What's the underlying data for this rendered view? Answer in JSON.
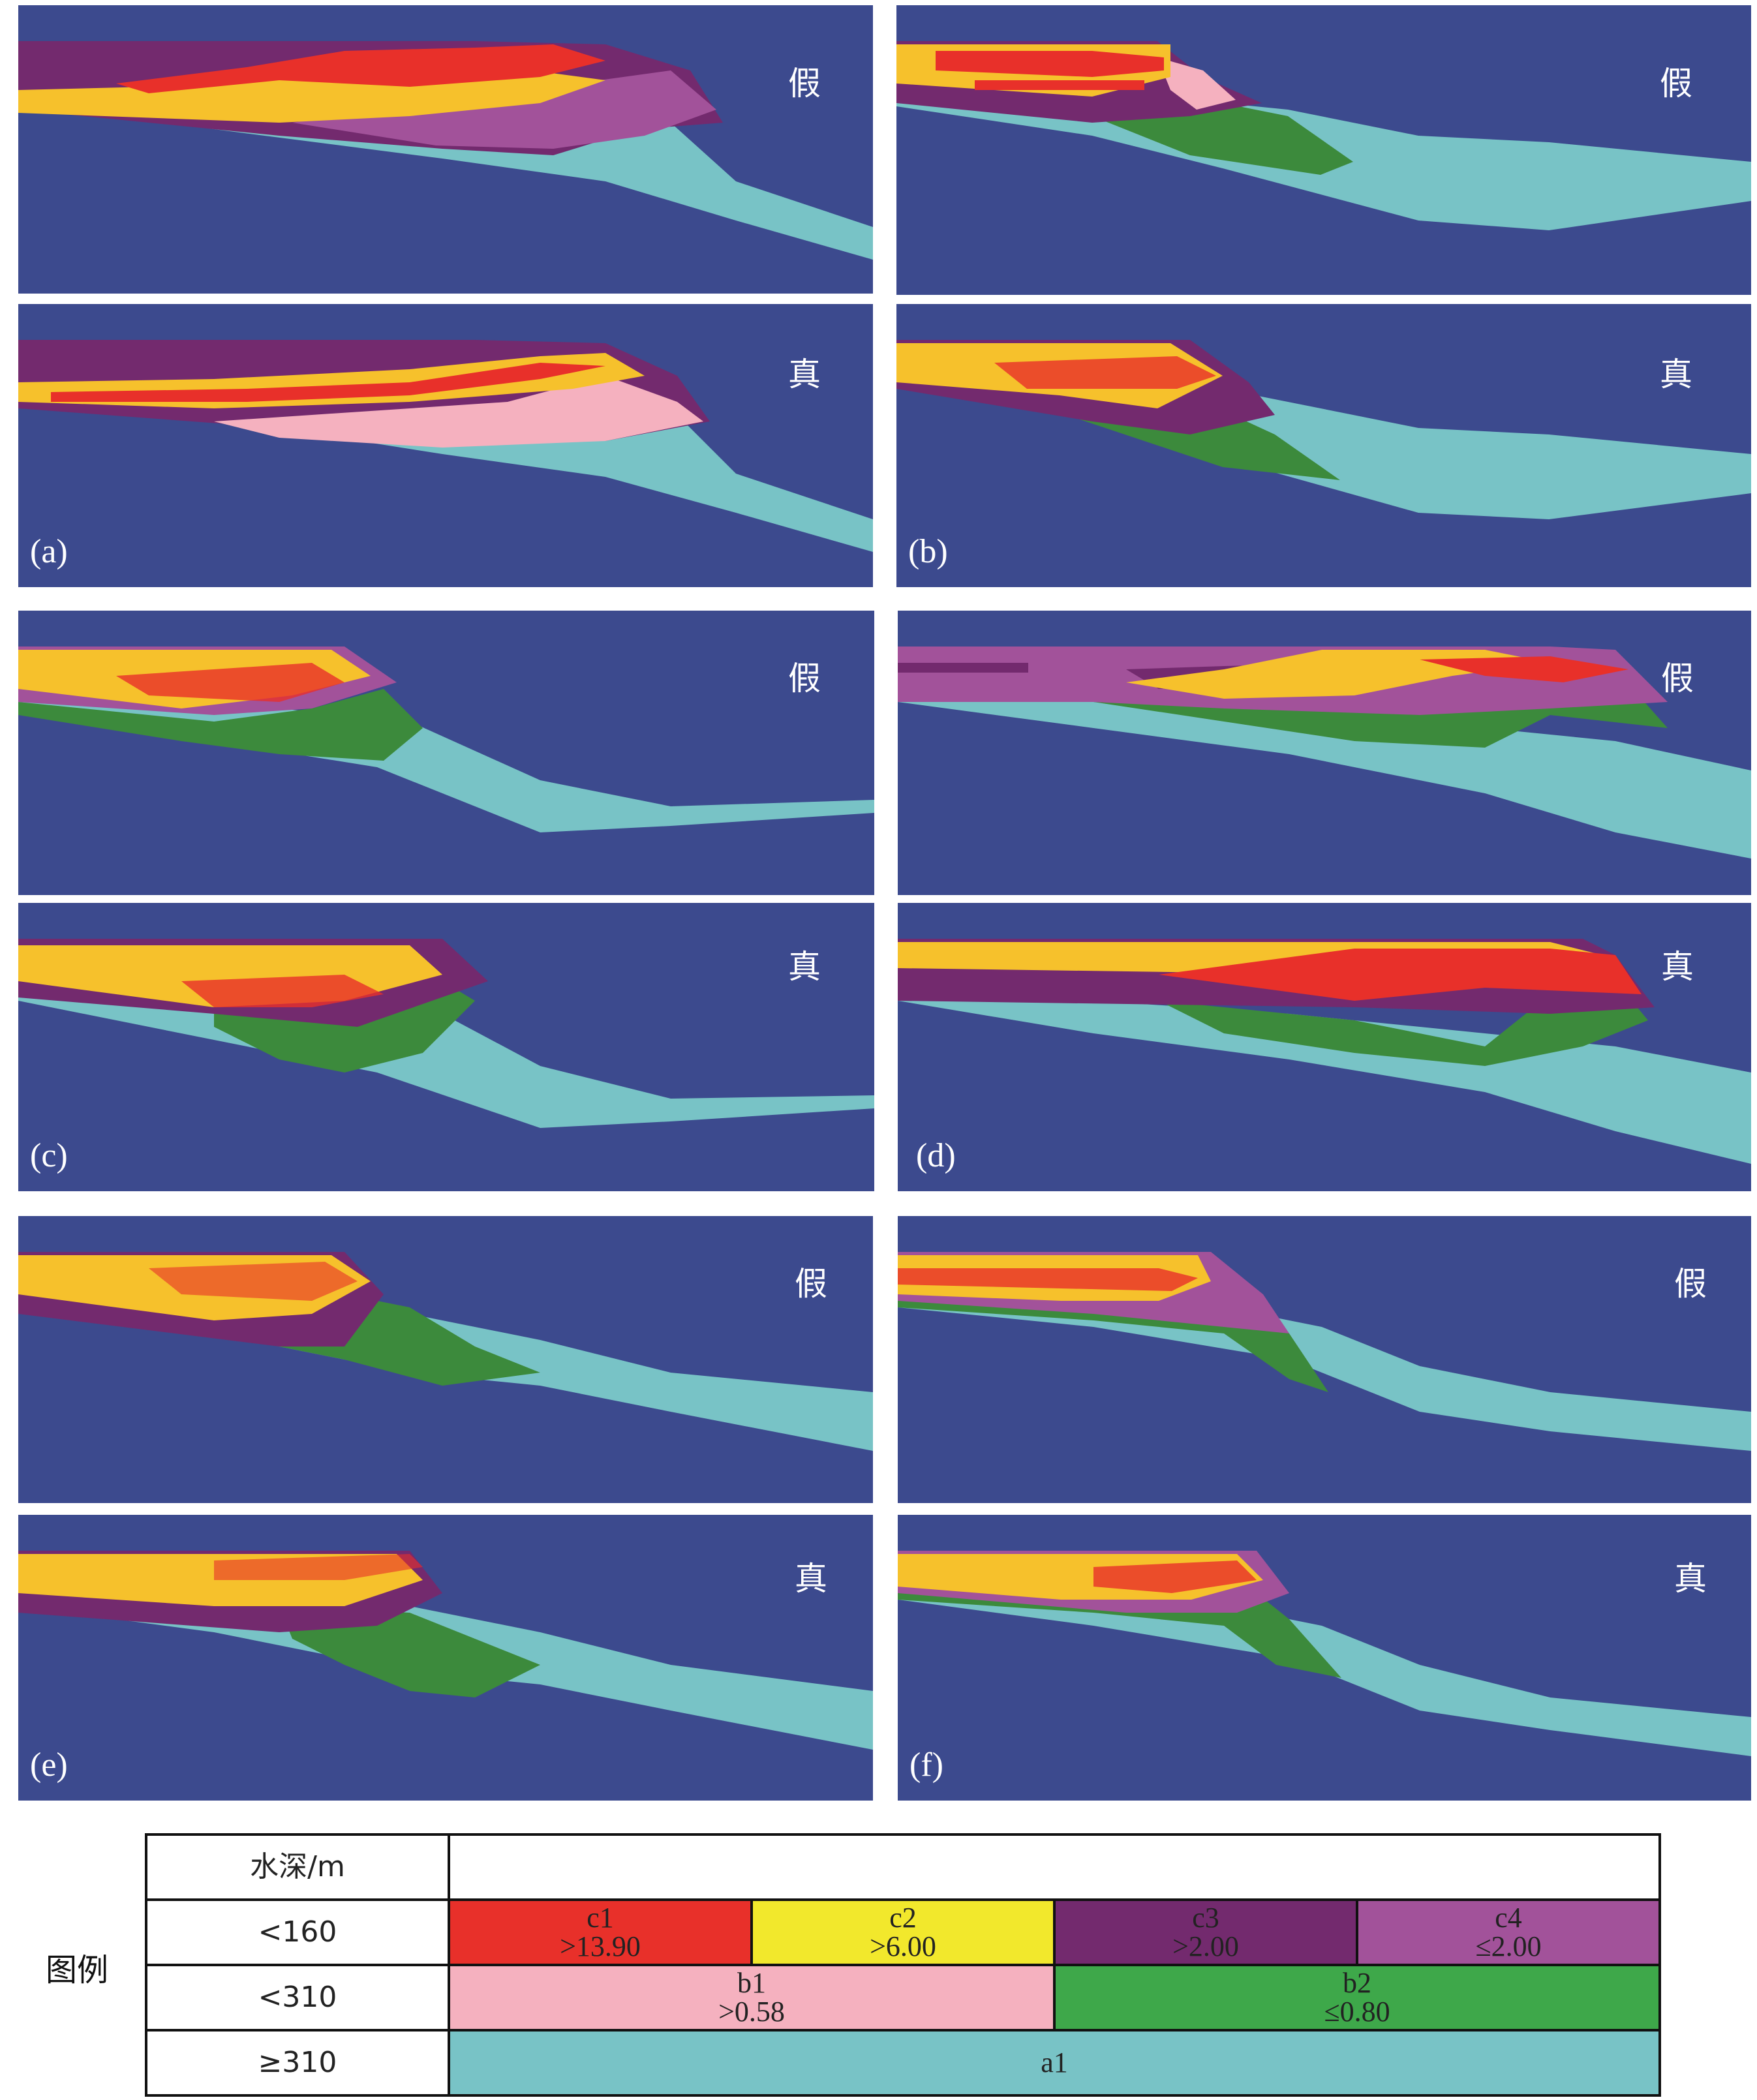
{
  "panels": [
    {
      "id": "a",
      "label": "(a)",
      "tags": [
        "假",
        "真"
      ]
    },
    {
      "id": "b",
      "label": "(b)",
      "tags": [
        "假",
        "真"
      ]
    },
    {
      "id": "c",
      "label": "(c)",
      "tags": [
        "假",
        "真"
      ]
    },
    {
      "id": "d",
      "label": "(d)",
      "tags": [
        "假",
        "真"
      ]
    },
    {
      "id": "e",
      "label": "(e)",
      "tags": [
        "假",
        "真"
      ]
    },
    {
      "id": "f",
      "label": "(f)",
      "tags": [
        "假",
        "真"
      ]
    }
  ],
  "colors": {
    "background": "#3c4a8e",
    "c1": "#e8302a",
    "c2": "#f6c12c",
    "c3": "#732a6e",
    "c4": "#a2529a",
    "b1": "#f5b1bf",
    "b2": "#3c8a3c",
    "a1": "#78c3c6"
  },
  "legend": {
    "title": "图例",
    "header_label": "水深/m",
    "rows": [
      {
        "depth": "<160",
        "classes": [
          {
            "code": "c1",
            "value": ">13.90"
          },
          {
            "code": "c2",
            "value": ">6.00"
          },
          {
            "code": "c3",
            "value": ">2.00"
          },
          {
            "code": "c4",
            "value": "≤2.00"
          }
        ]
      },
      {
        "depth": "<310",
        "classes": [
          {
            "code": "b1",
            "value": ">0.58"
          },
          {
            "code": "b2",
            "value": "≤0.80"
          }
        ]
      },
      {
        "depth": "≥310",
        "classes": [
          {
            "code": "a1",
            "value": ""
          }
        ]
      }
    ]
  }
}
